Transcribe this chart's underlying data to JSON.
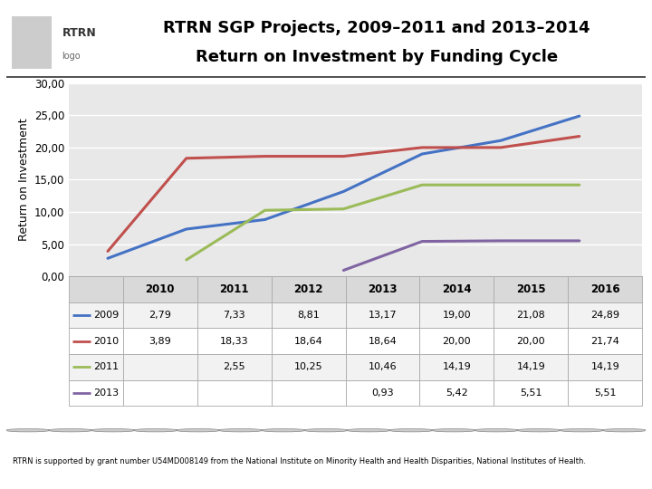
{
  "title_line1": "RTRN SGP Projects, 2009–2011 and 2013–2014",
  "title_line2": "Return on Investment by Funding Cycle",
  "ylabel": "Return on Investment",
  "x_labels": [
    "2010",
    "2011",
    "2012",
    "2013",
    "2014",
    "2015",
    "2016"
  ],
  "x_values": [
    2010,
    2011,
    2012,
    2013,
    2014,
    2015,
    2016
  ],
  "ylim": [
    0,
    30
  ],
  "yticks": [
    0,
    5,
    10,
    15,
    20,
    25,
    30
  ],
  "ytick_labels": [
    "0,00",
    "5,00",
    "10,00",
    "15,00",
    "20,00",
    "25,00",
    "30,00"
  ],
  "series": [
    {
      "label": "2009",
      "color": "#4472C4",
      "x": [
        2010,
        2011,
        2012,
        2013,
        2014,
        2015,
        2016
      ],
      "y": [
        2.79,
        7.33,
        8.81,
        13.17,
        19.0,
        21.08,
        24.89
      ]
    },
    {
      "label": "2010",
      "color": "#C0504D",
      "x": [
        2010,
        2011,
        2012,
        2013,
        2014,
        2015,
        2016
      ],
      "y": [
        3.89,
        18.33,
        18.64,
        18.64,
        20.0,
        20.0,
        21.74
      ]
    },
    {
      "label": "2011",
      "color": "#9BBB59",
      "x": [
        2011,
        2012,
        2013,
        2014,
        2015,
        2016
      ],
      "y": [
        2.55,
        10.25,
        10.46,
        14.19,
        14.19,
        14.19
      ]
    },
    {
      "label": "2013",
      "color": "#8064A2",
      "x": [
        2013,
        2014,
        2015,
        2016
      ],
      "y": [
        0.93,
        5.42,
        5.51,
        5.51
      ]
    }
  ],
  "table_header": [
    "",
    "2010",
    "2011",
    "2012",
    "2013",
    "2014",
    "2015",
    "2016"
  ],
  "table_rows": [
    {
      "label": "2009",
      "color": "#4472C4",
      "values": [
        "2,79",
        "7,33",
        "8,81",
        "13,17",
        "19,00",
        "21,08",
        "24,89"
      ]
    },
    {
      "label": "2010",
      "color": "#C0504D",
      "values": [
        "3,89",
        "18,33",
        "18,64",
        "18,64",
        "20,00",
        "20,00",
        "21,74"
      ]
    },
    {
      "label": "2011",
      "color": "#9BBB59",
      "values": [
        "",
        "2,55",
        "10,25",
        "10,46",
        "14,19",
        "14,19",
        "14,19"
      ]
    },
    {
      "label": "2013",
      "color": "#8064A2",
      "values": [
        "",
        "",
        "",
        "0,93",
        "5,42",
        "5,51",
        "5,51"
      ]
    }
  ],
  "bg_color": "#FFFFFF",
  "plot_bg_color": "#E8E8E8",
  "grid_color": "#FFFFFF",
  "table_header_bg": "#D9D9D9",
  "table_row_bg": "#FFFFFF",
  "table_alt_bg": "#F2F2F2",
  "table_border": "#AAAAAA",
  "footnote": "RTRN is supported by grant number U54MD008149 from the National Institute on Minority Health and Health Disparities, National Institutes of Health."
}
